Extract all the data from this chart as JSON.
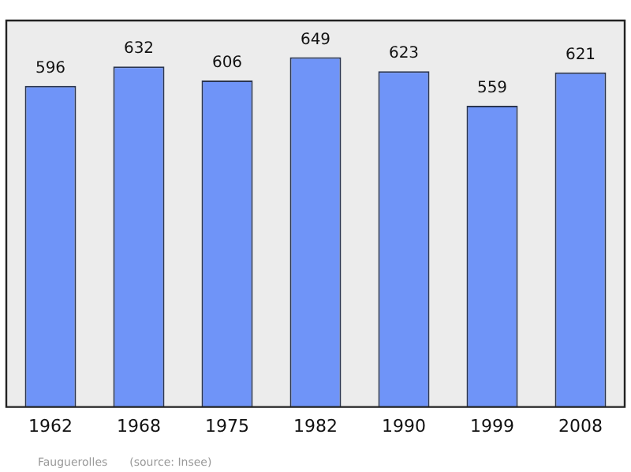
{
  "chart_data": {
    "type": "bar",
    "categories": [
      "1962",
      "1968",
      "1975",
      "1982",
      "1990",
      "1999",
      "2008"
    ],
    "values": [
      596,
      632,
      606,
      649,
      623,
      559,
      621
    ],
    "color": "#6f94f8",
    "data_labels": true,
    "tick_labels": "x",
    "grid": false,
    "legend": false,
    "annotations": [
      "Fauguerolles",
      "(source: Insee)"
    ]
  }
}
